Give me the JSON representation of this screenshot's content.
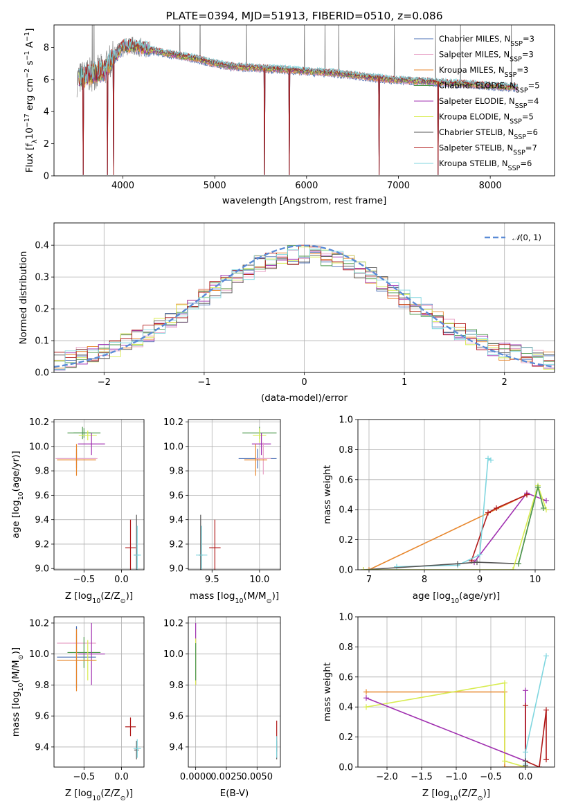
{
  "chart_data": [
    {
      "id": "spectrum",
      "type": "line",
      "title": "PLATE=0394, MJD=51913, FIBERID=0510, z=0.086",
      "xlabel": "wavelength [Angstrom, rest frame]",
      "ylabel_parts": [
        "Flux [f",
        "λ",
        "10",
        "−17",
        " erg cm",
        "−2",
        " s",
        "−1",
        " A",
        "−1",
        "]"
      ],
      "xlim": [
        3250,
        8700
      ],
      "ylim": [
        0,
        9.4
      ],
      "xticks": [
        4000,
        5000,
        6000,
        7000,
        8000
      ],
      "yticks": [
        0,
        2,
        4,
        6,
        8
      ],
      "xtick_labels": [
        "4000",
        "5000",
        "6000",
        "7000",
        "8000"
      ],
      "ytick_labels": [
        "0",
        "2",
        "4",
        "6",
        "8"
      ],
      "grid": false,
      "legend_position": "top-right",
      "data_range": [
        3500,
        8300
      ],
      "continuum": {
        "x": [
          3500,
          3600,
          3700,
          3800,
          3900,
          4000,
          4100,
          4200,
          4400,
          4600,
          4800,
          5000,
          5200,
          5500,
          5800,
          6000,
          6300,
          6600,
          6900,
          7200,
          7500,
          7800,
          8000,
          8300
        ],
        "y": [
          6.0,
          6.2,
          6.4,
          6.6,
          7.4,
          8.0,
          8.1,
          8.0,
          7.7,
          7.5,
          7.3,
          7.0,
          6.8,
          6.7,
          6.6,
          6.5,
          6.4,
          6.2,
          6.0,
          5.9,
          5.8,
          5.7,
          5.6,
          5.5
        ]
      },
      "dropouts": [
        3570,
        3830,
        3900,
        5540,
        5810,
        6790,
        7430
      ],
      "series": [
        {
          "name_parts": [
            "Chabrier MILES, N",
            "SSP",
            "=3"
          ],
          "color": "#4a6fb5"
        },
        {
          "name_parts": [
            "Salpeter MILES, N",
            "SSP",
            "=3"
          ],
          "color": "#e8a3c6"
        },
        {
          "name_parts": [
            "Kroupa MILES, N",
            "SSP",
            "=3"
          ],
          "color": "#e8872d"
        },
        {
          "name_parts": [
            "Chabrier ELODIE, N",
            "SSP",
            "=5"
          ],
          "color": "#4e9a4e"
        },
        {
          "name_parts": [
            "Salpeter ELODIE, N",
            "SSP",
            "=4"
          ],
          "color": "#a030b0"
        },
        {
          "name_parts": [
            "Kroupa ELODIE, N",
            "SSP",
            "=5"
          ],
          "color": "#d8ec50"
        },
        {
          "name_parts": [
            "Chabrier STELIB, N",
            "SSP",
            "=6"
          ],
          "color": "#555555"
        },
        {
          "name_parts": [
            "Salpeter STELIB, N",
            "SSP",
            "=7"
          ],
          "color": "#b01818"
        },
        {
          "name_parts": [
            "Kroupa STELIB, N",
            "SSP",
            "=6"
          ],
          "color": "#7fd6df"
        }
      ],
      "observed_color": "#808080"
    },
    {
      "id": "residuals",
      "type": "histogram",
      "xlabel": "(data-model)/error",
      "ylabel": "Normed distribution",
      "xlim": [
        -2.5,
        2.5
      ],
      "ylim": [
        0,
        0.47
      ],
      "xticks": [
        -2,
        -1,
        0,
        1,
        2
      ],
      "xtick_labels": [
        "−2",
        "−1",
        "0",
        "1",
        "2"
      ],
      "yticks": [
        0.0,
        0.1,
        0.2,
        0.3,
        0.4
      ],
      "ytick_labels": [
        "0.0",
        "0.1",
        "0.2",
        "0.3",
        "0.4"
      ],
      "grid": true,
      "legend_position": "top-right",
      "legend_parts": [
        "𝒩",
        "(0, 1)"
      ],
      "gaussian_color": "#5a8bd6",
      "bins": 45,
      "series_colors": [
        "#4a6fb5",
        "#e8a3c6",
        "#e8872d",
        "#4e9a4e",
        "#a030b0",
        "#d8ec50",
        "#555555",
        "#b01818",
        "#7fd6df"
      ]
    },
    {
      "id": "age-vs-Z",
      "type": "scatter",
      "xlabel_parts": [
        "Z [log",
        "10",
        "(Z/Z",
        "⊙",
        ")]"
      ],
      "ylabel_parts": [
        "age  [log",
        "10",
        "(age/yr)]"
      ],
      "xlim": [
        -0.9,
        0.3
      ],
      "ylim": [
        8.99,
        10.22
      ],
      "xticks": [
        -0.5,
        0.0
      ],
      "xtick_labels": [
        "−0.5",
        "0.0"
      ],
      "yticks": [
        9.0,
        9.2,
        9.4,
        9.6,
        9.8,
        10.0,
        10.2
      ],
      "ytick_labels": [
        "9.0",
        "9.2",
        "9.4",
        "9.6",
        "9.8",
        "10.0",
        "10.2"
      ],
      "grid": true,
      "points": [
        {
          "x": -0.52,
          "y": 10.11,
          "dx": 0.12,
          "dy": 0.05,
          "color": "#4e9a4e"
        },
        {
          "x": -0.5,
          "y": 10.11,
          "dx": 0.22,
          "dy": 0.04,
          "color": "#4e9a4e"
        },
        {
          "x": -0.45,
          "y": 10.09,
          "dx": 0.12,
          "dy": 0.04,
          "color": "#d8ec50"
        },
        {
          "x": -0.4,
          "y": 10.02,
          "dx": 0.18,
          "dy": 0.09,
          "color": "#a030b0"
        },
        {
          "x": -0.6,
          "y": 9.9,
          "dx": 0.26,
          "dy": 0.08,
          "color": "#4a6fb5"
        },
        {
          "x": -0.6,
          "y": 9.9,
          "dx": 0.28,
          "dy": 0.05,
          "color": "#e8a3c6"
        },
        {
          "x": -0.6,
          "y": 9.89,
          "dx": 0.26,
          "dy": 0.13,
          "color": "#e8872d"
        },
        {
          "x": 0.12,
          "y": 9.17,
          "dx": 0.07,
          "dy": 0.23,
          "color": "#b01818"
        },
        {
          "x": 0.2,
          "y": 9.11,
          "dx": 0.03,
          "dy": 0.33,
          "color": "#555555"
        },
        {
          "x": 0.21,
          "y": 9.11,
          "dx": 0.05,
          "dy": 0.24,
          "color": "#7fd6df"
        }
      ]
    },
    {
      "id": "age-vs-mass",
      "type": "scatter",
      "xlabel_parts": [
        "mass [log",
        "10",
        "(M/M",
        "⊙",
        ")]"
      ],
      "ylabel_parts": [],
      "xlim": [
        9.25,
        10.22
      ],
      "ylim": [
        8.99,
        10.22
      ],
      "xticks": [
        9.5,
        10.0
      ],
      "xtick_labels": [
        "9.5",
        "10.0"
      ],
      "yticks": [
        9.0,
        9.2,
        9.4,
        9.6,
        9.8,
        10.0,
        10.2
      ],
      "ytick_labels": [
        "9.0",
        "9.2",
        "9.4",
        "9.6",
        "9.8",
        "10.0",
        "10.2"
      ],
      "grid": true,
      "points": [
        {
          "x": 10.0,
          "y": 10.11,
          "dx": 0.18,
          "dy": 0.05,
          "color": "#4e9a4e"
        },
        {
          "x": 10.0,
          "y": 10.09,
          "dx": 0.07,
          "dy": 0.06,
          "color": "#d8ec50"
        },
        {
          "x": 10.02,
          "y": 10.02,
          "dx": 0.1,
          "dy": 0.09,
          "color": "#a030b0"
        },
        {
          "x": 9.98,
          "y": 9.9,
          "dx": 0.2,
          "dy": 0.08,
          "color": "#4a6fb5"
        },
        {
          "x": 10.04,
          "y": 9.9,
          "dx": 0.08,
          "dy": 0.13,
          "color": "#e8a3c6"
        },
        {
          "x": 9.96,
          "y": 9.89,
          "dx": 0.12,
          "dy": 0.13,
          "color": "#e8872d"
        },
        {
          "x": 9.53,
          "y": 9.17,
          "dx": 0.06,
          "dy": 0.23,
          "color": "#b01818"
        },
        {
          "x": 9.38,
          "y": 9.11,
          "dx": 0.02,
          "dy": 0.33,
          "color": "#555555"
        },
        {
          "x": 9.39,
          "y": 9.11,
          "dx": 0.06,
          "dy": 0.24,
          "color": "#7fd6df"
        }
      ]
    },
    {
      "id": "weight-vs-age",
      "type": "line",
      "xlabel_parts": [
        "age  [log",
        "10",
        "(age/yr)]"
      ],
      "ylabel": "mass weight",
      "xlim": [
        6.8,
        10.35
      ],
      "ylim": [
        0.0,
        1.0
      ],
      "xticks": [
        7,
        8,
        9,
        10
      ],
      "xtick_labels": [
        "7",
        "8",
        "9",
        "10"
      ],
      "yticks": [
        0.0,
        0.2,
        0.4,
        0.6,
        0.8,
        1.0
      ],
      "ytick_labels": [
        "0.0",
        "0.2",
        "0.4",
        "0.6",
        "0.8",
        "1.0"
      ],
      "grid": true,
      "series": [
        {
          "color": "#e8872d",
          "x": [
            7.0,
            9.85
          ],
          "y": [
            0.0,
            0.5
          ]
        },
        {
          "color": "#a030b0",
          "x": [
            8.9,
            9.85,
            10.2
          ],
          "y": [
            0.05,
            0.51,
            0.46
          ]
        },
        {
          "color": "#b01818",
          "x": [
            8.85,
            9.15,
            9.3,
            9.85
          ],
          "y": [
            0.06,
            0.38,
            0.41,
            0.5
          ]
        },
        {
          "color": "#7fd6df",
          "x": [
            7.5,
            8.6,
            9.0,
            9.15,
            9.2
          ],
          "y": [
            0.02,
            0.03,
            0.1,
            0.74,
            0.73
          ]
        },
        {
          "color": "#555555",
          "x": [
            6.9,
            8.6,
            8.95,
            9.7,
            10.05
          ],
          "y": [
            0.0,
            0.04,
            0.05,
            0.04,
            0.55
          ]
        },
        {
          "color": "#d8ec50",
          "x": [
            6.9,
            9.6,
            10.05,
            10.2
          ],
          "y": [
            0.0,
            0.0,
            0.56,
            0.4
          ]
        },
        {
          "color": "#4e9a4e",
          "x": [
            9.7,
            10.05,
            10.15
          ],
          "y": [
            0.04,
            0.55,
            0.41
          ]
        }
      ]
    },
    {
      "id": "mass-vs-Z",
      "type": "scatter",
      "xlabel_parts": [
        "Z [log",
        "10",
        "(Z/Z",
        "⊙",
        ")]"
      ],
      "ylabel_parts": [
        "mass [log",
        "10",
        "(M/M",
        "⊙",
        ")]"
      ],
      "xlim": [
        -0.9,
        0.3
      ],
      "ylim": [
        9.27,
        10.24
      ],
      "xticks": [
        -0.5,
        0.0
      ],
      "xtick_labels": [
        "−0.5",
        "0.0"
      ],
      "yticks": [
        9.4,
        9.6,
        9.8,
        10.0,
        10.2
      ],
      "ytick_labels": [
        "9.4",
        "9.6",
        "9.8",
        "10.0",
        "10.2"
      ],
      "grid": true,
      "points": [
        {
          "x": -0.6,
          "y": 10.07,
          "dx": 0.26,
          "dy": 0.06,
          "color": "#e8a3c6"
        },
        {
          "x": -0.5,
          "y": 10.01,
          "dx": 0.22,
          "dy": 0.1,
          "color": "#4e9a4e"
        },
        {
          "x": -0.4,
          "y": 10.0,
          "dx": 0.18,
          "dy": 0.2,
          "color": "#a030b0"
        },
        {
          "x": -0.6,
          "y": 9.98,
          "dx": 0.26,
          "dy": 0.2,
          "color": "#4a6fb5"
        },
        {
          "x": -0.45,
          "y": 9.96,
          "dx": 0.12,
          "dy": 0.13,
          "color": "#d8ec50"
        },
        {
          "x": -0.6,
          "y": 9.96,
          "dx": 0.26,
          "dy": 0.2,
          "color": "#e8872d"
        },
        {
          "x": 0.12,
          "y": 9.53,
          "dx": 0.07,
          "dy": 0.06,
          "color": "#b01818"
        },
        {
          "x": 0.2,
          "y": 9.38,
          "dx": 0.03,
          "dy": 0.06,
          "color": "#555555"
        },
        {
          "x": 0.21,
          "y": 9.39,
          "dx": 0.05,
          "dy": 0.06,
          "color": "#7fd6df"
        }
      ]
    },
    {
      "id": "mass-vs-EBV",
      "type": "scatter",
      "xlabel": "E(B-V)",
      "ylabel_parts": [],
      "xlim": [
        -0.0006,
        0.0069
      ],
      "ylim": [
        9.27,
        10.24
      ],
      "xticks": [
        0.0,
        0.0025,
        0.005
      ],
      "xtick_labels": [
        "0.0000",
        "0.0025",
        "0.0050"
      ],
      "yticks": [
        9.4,
        9.6,
        9.8,
        10.0,
        10.2
      ],
      "ytick_labels": [
        "9.4",
        "9.6",
        "9.8",
        "10.0",
        "10.2"
      ],
      "grid": true,
      "points": [
        {
          "x": 0.0,
          "y": 10.0,
          "dx": 0.0,
          "dy": 0.2,
          "color": "#a030b0"
        },
        {
          "x": 0.0,
          "y": 9.95,
          "dx": 0.0,
          "dy": 0.15,
          "color": "#d8ec50"
        },
        {
          "x": 0.0,
          "y": 9.95,
          "dx": 0.0,
          "dy": 0.12,
          "color": "#4e9a4e"
        },
        {
          "x": 0.0066,
          "y": 9.47,
          "dx": 0.0,
          "dy": 0.1,
          "color": "#b01818"
        },
        {
          "x": 0.0066,
          "y": 9.38,
          "dx": 0.0,
          "dy": 0.06,
          "color": "#555555"
        },
        {
          "x": 0.0066,
          "y": 9.4,
          "dx": 0.0,
          "dy": 0.07,
          "color": "#7fd6df"
        }
      ]
    },
    {
      "id": "weight-vs-Z",
      "type": "line",
      "xlabel_parts": [
        "Z [log",
        "10",
        "(Z/Z",
        "⊙",
        ")]"
      ],
      "ylabel": "mass weight",
      "xlim": [
        -2.42,
        0.42
      ],
      "ylim": [
        0.0,
        1.0
      ],
      "xticks": [
        -2.0,
        -1.5,
        -1.0,
        -0.5,
        0.0
      ],
      "xtick_labels": [
        "−2.0",
        "−1.5",
        "−1.0",
        "−0.5",
        "0.0"
      ],
      "yticks": [
        0.0,
        0.2,
        0.4,
        0.6,
        0.8,
        1.0
      ],
      "ytick_labels": [
        "0.0",
        "0.2",
        "0.4",
        "0.6",
        "0.8",
        "1.0"
      ],
      "grid": true,
      "series": [
        {
          "color": "#e8872d",
          "x": [
            -2.3,
            -0.3,
            -0.3,
            0.0
          ],
          "y": [
            0.5,
            0.5,
            0.0,
            0.0
          ]
        },
        {
          "color": "#d8ec50",
          "x": [
            -2.3,
            -0.3,
            -0.3,
            0.0
          ],
          "y": [
            0.4,
            0.56,
            0.04,
            0.0
          ]
        },
        {
          "color": "#a030b0",
          "x": [
            -2.3,
            0.0,
            0.0
          ],
          "y": [
            0.46,
            0.04,
            0.51
          ]
        },
        {
          "color": "#b01818",
          "x": [
            0.0,
            0.0,
            0.2,
            0.3,
            0.3
          ],
          "y": [
            0.41,
            0.04,
            0.0,
            0.38,
            0.05
          ]
        },
        {
          "color": "#7fd6df",
          "x": [
            0.0,
            0.0,
            0.3
          ],
          "y": [
            0.02,
            0.1,
            0.74
          ]
        },
        {
          "color": "#555555",
          "x": [
            0.0,
            0.0
          ],
          "y": [
            0.01,
            0.04
          ]
        }
      ]
    }
  ]
}
